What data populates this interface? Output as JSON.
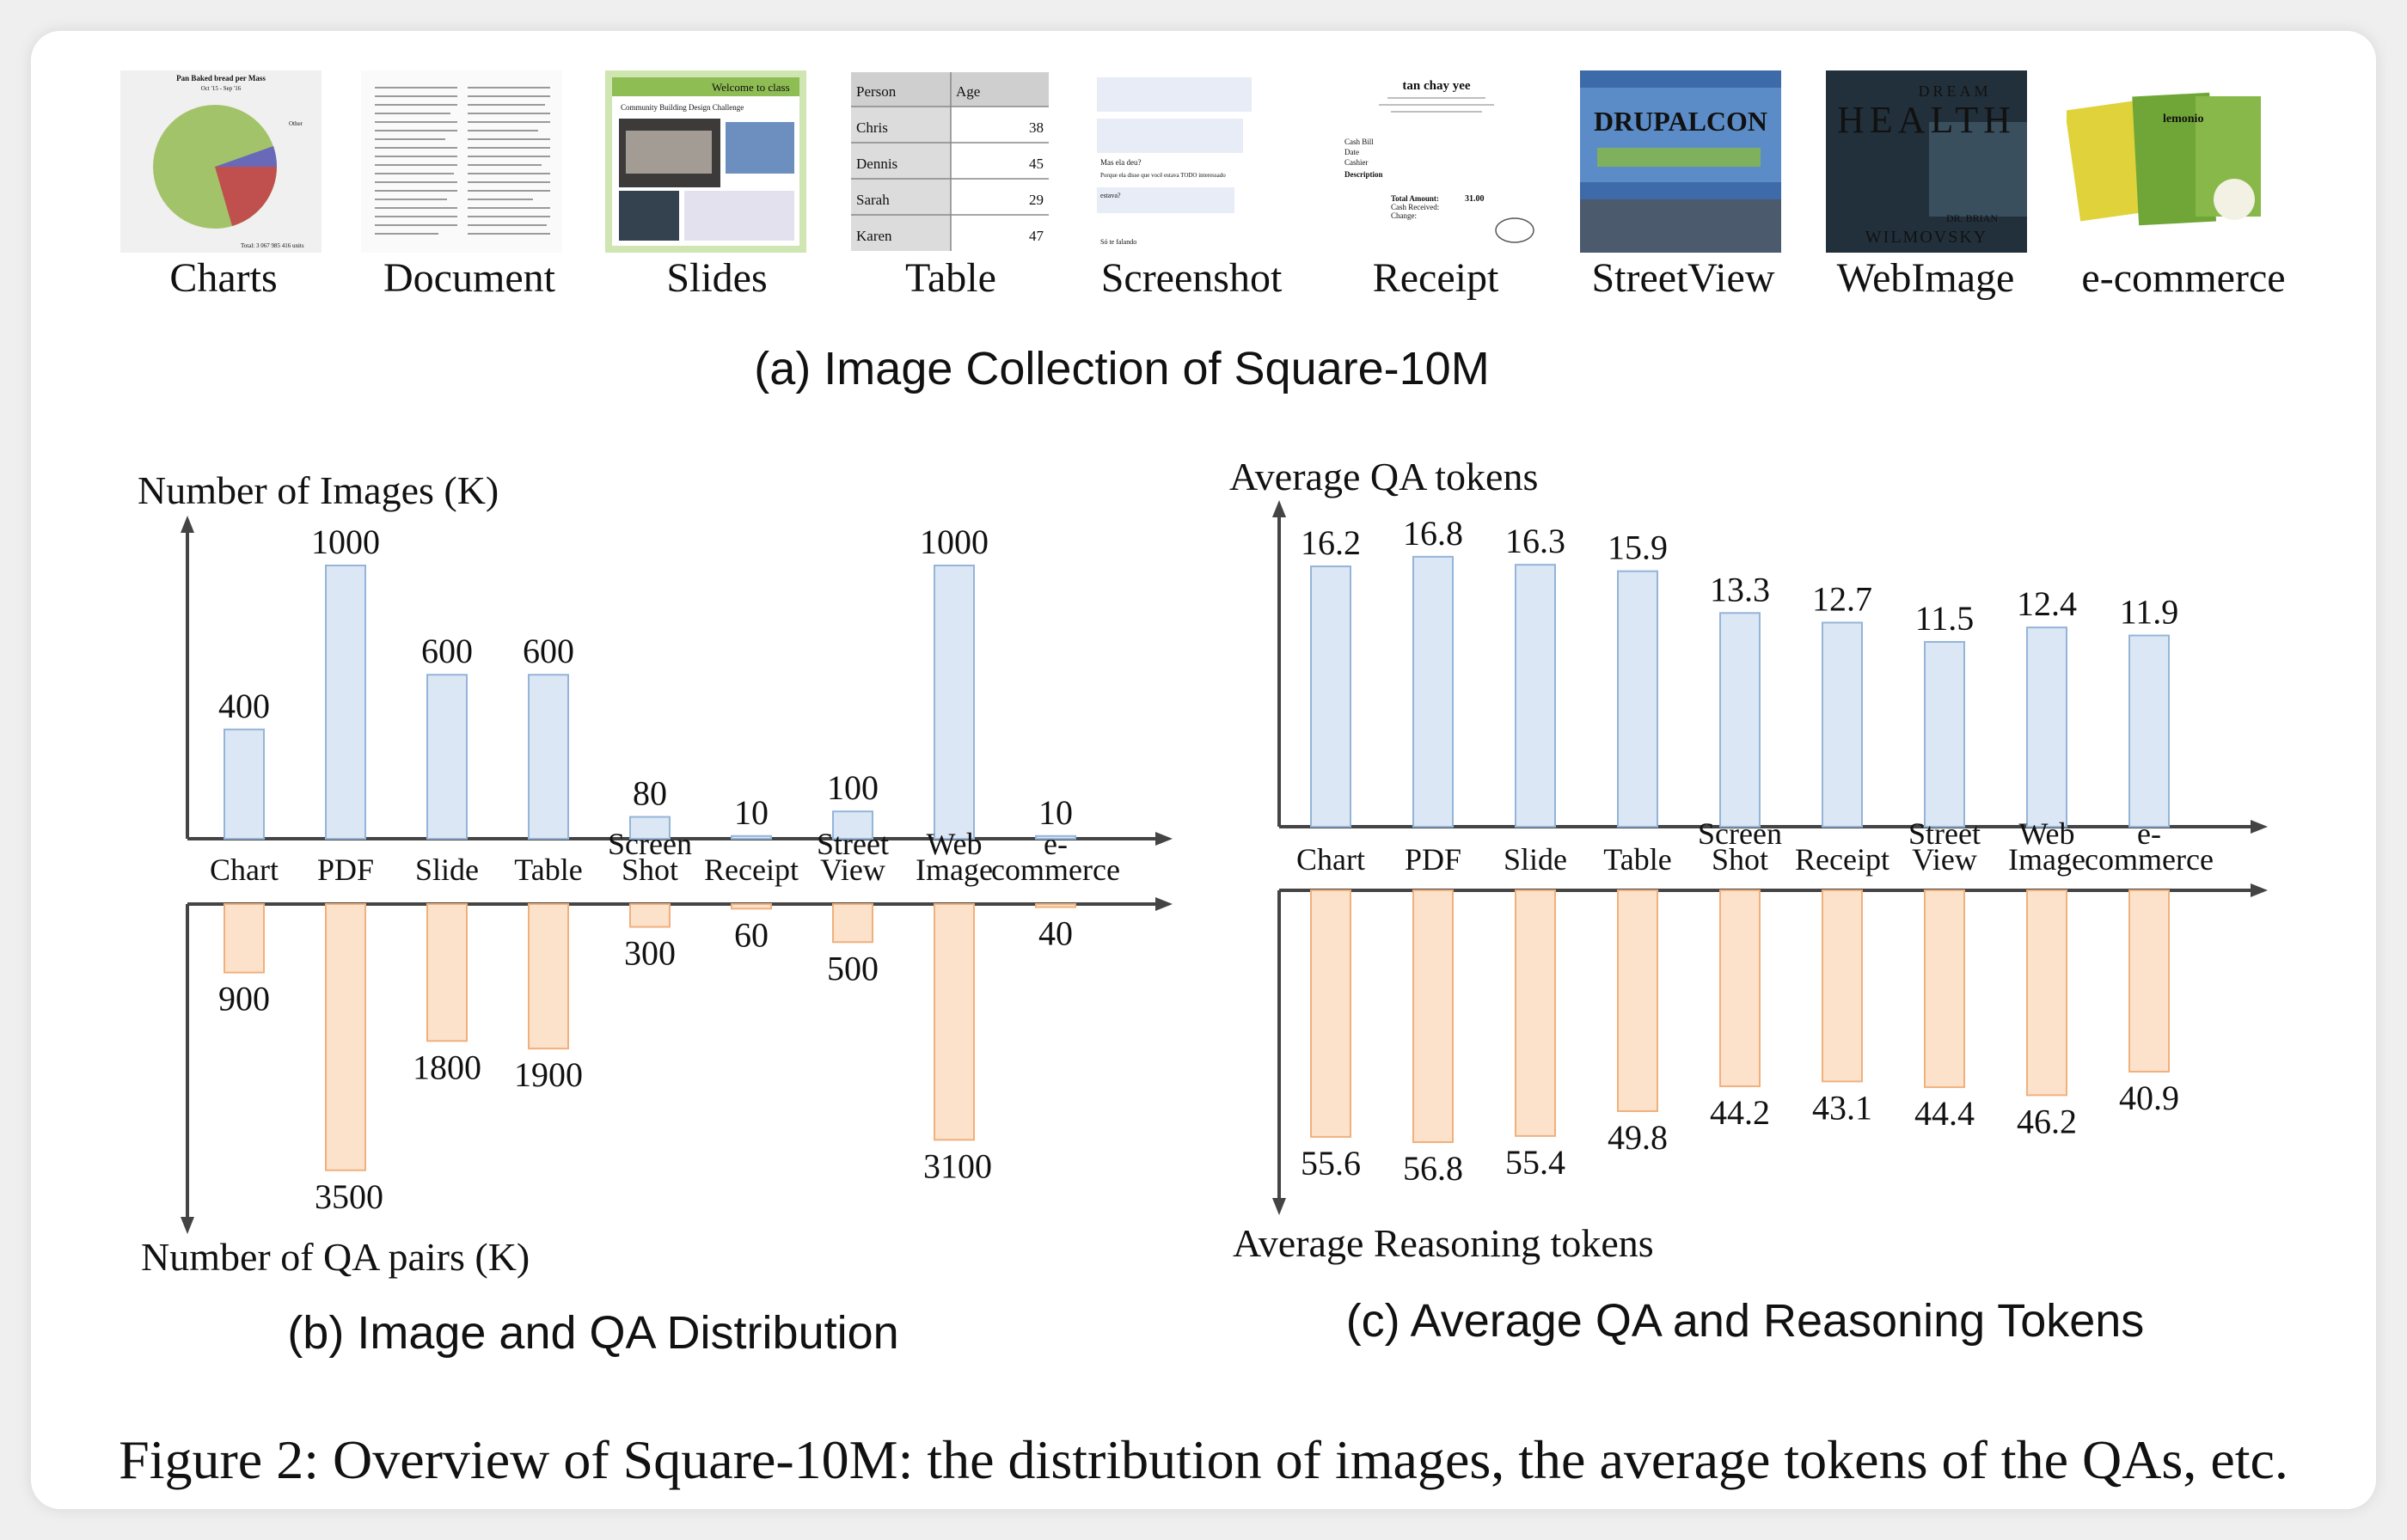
{
  "caption": "Figure 2: Overview of Square-10M: the distribution of images, the average tokens of the QAs, etc.",
  "gallery": {
    "title": "(a) Image Collection of Square-10M",
    "items": [
      {
        "label": "Charts",
        "chart_title": "Pan Baked bread per Mass",
        "chart_sub": "Oct '15 - Sep '16",
        "other": "Other",
        "total": "Total: 3 067 985 416 units"
      },
      {
        "label": "Document"
      },
      {
        "label": "Slides",
        "header": "Welcome to class",
        "sub": "Community Building Design Challenge"
      },
      {
        "label": "Table",
        "headers": [
          "Person",
          "Age"
        ],
        "rows": [
          [
            "Chris",
            "38"
          ],
          [
            "Dennis",
            "45"
          ],
          [
            "Sarah",
            "29"
          ],
          [
            "Karen",
            "47"
          ]
        ]
      },
      {
        "label": "Screenshot",
        "messages": [
          "Mas ela deu?",
          "Porque ela disse que você estava TODO interessado",
          "estava?",
          "Só te falando"
        ]
      },
      {
        "label": "Receipt",
        "shop": "tan chay yee",
        "lines": [
          "Cash Bill",
          "Date",
          "Cashier",
          "Description",
          "Total Amount:",
          "Cash Received:",
          "Change:"
        ],
        "amount": "31.00"
      },
      {
        "label": "StreetView",
        "sign": "DRUPALCON"
      },
      {
        "label": "WebImage",
        "top": "DREAM",
        "big": "HEALTH",
        "author_top": "DR. BRIAN",
        "author": "WILMOVSKY"
      },
      {
        "label": "e-commerce",
        "brand": "lemonio"
      }
    ]
  },
  "panel_b": {
    "title": "(b) Image and QA Distribution",
    "chart_data": {
      "type": "bar",
      "categories": [
        "Chart",
        "PDF",
        "Slide",
        "Table",
        "Screen Shot",
        "Receipt",
        "Street View",
        "Web Image",
        "e- commerce"
      ],
      "series": [
        {
          "name": "Number of Images (K)",
          "values": [
            400,
            1000,
            600,
            600,
            80,
            10,
            100,
            1000,
            10
          ]
        },
        {
          "name": "Number of QA pairs (K)",
          "values": [
            900,
            3500,
            1800,
            1900,
            300,
            60,
            500,
            3100,
            40
          ]
        }
      ],
      "ylabel_top": "Number of Images (K)",
      "ylabel_bottom": "Number of QA pairs (K)",
      "colors": {
        "top_fill": "#dce7f5",
        "top_stroke": "#94b4d8",
        "bottom_fill": "#fde2cb",
        "bottom_stroke": "#f0b07c"
      }
    }
  },
  "panel_c": {
    "title": "(c) Average QA and Reasoning Tokens",
    "chart_data": {
      "type": "bar",
      "categories": [
        "Chart",
        "PDF",
        "Slide",
        "Table",
        "Screen Shot",
        "Receipt",
        "Street View",
        "Web Image",
        "e- commerce"
      ],
      "series": [
        {
          "name": "Average QA tokens",
          "values": [
            16.2,
            16.8,
            16.3,
            15.9,
            13.3,
            12.7,
            11.5,
            12.4,
            11.9
          ]
        },
        {
          "name": "Average Reasoning tokens",
          "values": [
            55.6,
            56.8,
            55.4,
            49.8,
            44.2,
            43.1,
            44.4,
            46.2,
            40.9
          ]
        }
      ],
      "ylabel_top": "Average QA tokens",
      "ylabel_bottom": "Average Reasoning tokens",
      "colors": {
        "top_fill": "#dce7f5",
        "top_stroke": "#94b4d8",
        "bottom_fill": "#fde2cb",
        "bottom_stroke": "#f0b07c"
      }
    }
  }
}
